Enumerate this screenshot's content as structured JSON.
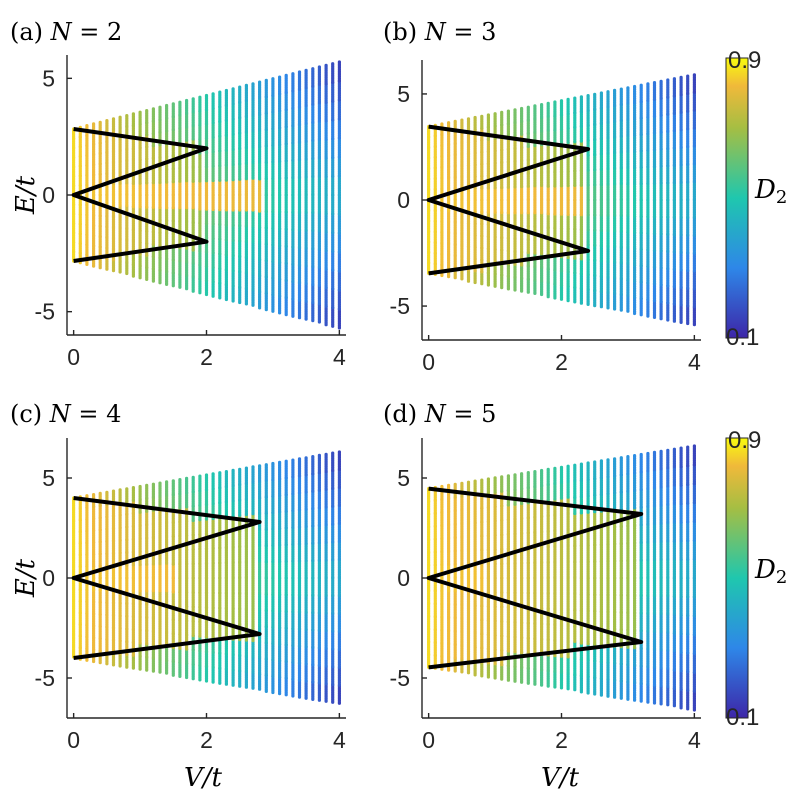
{
  "chart_data": [
    {
      "type": "scatter",
      "title": "(a) N = 2",
      "N": 2,
      "xlabel": "",
      "ylabel": "E/t",
      "xlim": [
        -0.1,
        4.1
      ],
      "ylim": [
        -6,
        6
      ],
      "xticks": [
        0,
        2,
        4
      ],
      "yticks": [
        -5,
        0,
        5
      ],
      "spectrum_half_width": {
        "x": [
          0,
          4
        ],
        "y": [
          2.83,
          5.7
        ]
      },
      "zigzag": {
        "x": [
          0,
          2.0,
          0,
          2.0,
          0
        ],
        "y": [
          2.83,
          2.0,
          0,
          -2.0,
          -2.83
        ]
      }
    },
    {
      "type": "scatter",
      "title": "(b) N = 3",
      "N": 3,
      "xlabel": "",
      "ylabel": "",
      "xlim": [
        -0.1,
        4.1
      ],
      "ylim": [
        -6.6,
        6.6
      ],
      "xticks": [
        0,
        2,
        4
      ],
      "yticks": [
        -5,
        0,
        5
      ],
      "spectrum_half_width": {
        "x": [
          0,
          4
        ],
        "y": [
          3.46,
          5.9
        ]
      },
      "zigzag": {
        "x": [
          0,
          2.4,
          0,
          2.4,
          0
        ],
        "y": [
          3.46,
          2.4,
          0,
          -2.4,
          -3.46
        ]
      }
    },
    {
      "type": "scatter",
      "title": "(c) N = 4",
      "N": 4,
      "xlabel": "V/t",
      "ylabel": "E/t",
      "xlim": [
        -0.1,
        4.1
      ],
      "ylim": [
        -7,
        7
      ],
      "xticks": [
        0,
        2,
        4
      ],
      "yticks": [
        -5,
        0,
        5
      ],
      "spectrum_half_width": {
        "x": [
          0,
          4
        ],
        "y": [
          4.0,
          6.3
        ]
      },
      "zigzag": {
        "x": [
          0,
          2.8,
          0,
          2.8,
          0
        ],
        "y": [
          4.0,
          2.8,
          0,
          -2.8,
          -4.0
        ]
      }
    },
    {
      "type": "scatter",
      "title": "(d) N = 5",
      "N": 5,
      "xlabel": "V/t",
      "ylabel": "",
      "xlim": [
        -0.1,
        4.1
      ],
      "ylim": [
        -7,
        7
      ],
      "xticks": [
        0,
        2,
        4
      ],
      "yticks": [
        -5,
        0,
        5
      ],
      "spectrum_half_width": {
        "x": [
          0,
          4
        ],
        "y": [
          4.47,
          6.6
        ]
      },
      "zigzag": {
        "x": [
          0,
          3.2,
          0,
          3.2,
          0
        ],
        "y": [
          4.47,
          3.2,
          0,
          -3.2,
          -4.47
        ]
      }
    }
  ],
  "colorbars": [
    {
      "label": "D2",
      "min": 0.1,
      "max": 0.9,
      "min_label": "0.1",
      "max_label": "0.9"
    },
    {
      "label": "D2",
      "min": 0.1,
      "max": 0.9,
      "min_label": "0.1",
      "max_label": "0.9"
    }
  ],
  "colors": {
    "low": "#3d26a8",
    "mid_low": "#2e87e8",
    "mid": "#1fc7ae",
    "mid_high": "#f0b93a",
    "high": "#f9fb0e",
    "zigzag": "#000000"
  }
}
